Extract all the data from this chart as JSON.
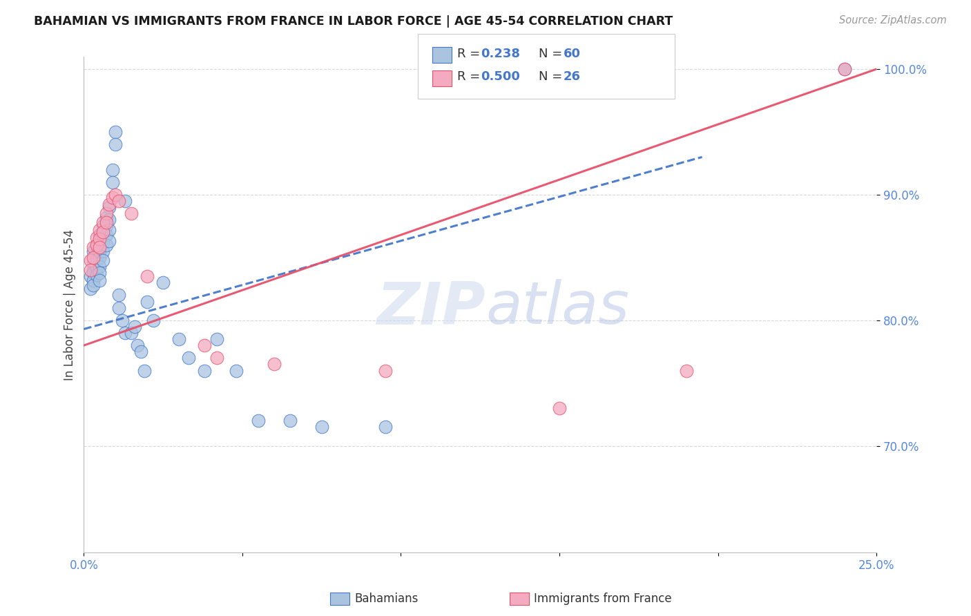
{
  "title": "BAHAMIAN VS IMMIGRANTS FROM FRANCE IN LABOR FORCE | AGE 45-54 CORRELATION CHART",
  "source": "Source: ZipAtlas.com",
  "ylabel": "In Labor Force | Age 45-54",
  "xlim": [
    0.0,
    0.25
  ],
  "ylim": [
    0.615,
    1.01
  ],
  "yticks": [
    0.7,
    0.8,
    0.9,
    1.0
  ],
  "yticklabels": [
    "70.0%",
    "80.0%",
    "90.0%",
    "100.0%"
  ],
  "bahamian_color": "#aac4e0",
  "france_color": "#f4aac0",
  "line1_color": "#4477cc",
  "line2_color": "#e8506a",
  "background_color": "#ffffff",
  "grid_color": "#d8d8d8",
  "bah_x": [
    0.002,
    0.002,
    0.003,
    0.003,
    0.003,
    0.003,
    0.003,
    0.003,
    0.004,
    0.004,
    0.004,
    0.004,
    0.004,
    0.005,
    0.005,
    0.005,
    0.005,
    0.005,
    0.005,
    0.005,
    0.006,
    0.006,
    0.006,
    0.006,
    0.006,
    0.007,
    0.007,
    0.007,
    0.007,
    0.008,
    0.008,
    0.008,
    0.008,
    0.009,
    0.009,
    0.01,
    0.01,
    0.011,
    0.011,
    0.012,
    0.013,
    0.013,
    0.015,
    0.016,
    0.017,
    0.018,
    0.019,
    0.02,
    0.022,
    0.025,
    0.03,
    0.033,
    0.038,
    0.042,
    0.048,
    0.055,
    0.065,
    0.075,
    0.095,
    0.24
  ],
  "bah_y": [
    0.835,
    0.825,
    0.855,
    0.845,
    0.84,
    0.838,
    0.832,
    0.828,
    0.86,
    0.853,
    0.848,
    0.842,
    0.836,
    0.868,
    0.862,
    0.855,
    0.85,
    0.843,
    0.838,
    0.832,
    0.875,
    0.87,
    0.862,
    0.855,
    0.848,
    0.882,
    0.875,
    0.868,
    0.86,
    0.89,
    0.88,
    0.872,
    0.863,
    0.92,
    0.91,
    0.95,
    0.94,
    0.82,
    0.81,
    0.8,
    0.79,
    0.895,
    0.79,
    0.795,
    0.78,
    0.775,
    0.76,
    0.815,
    0.8,
    0.83,
    0.785,
    0.77,
    0.76,
    0.785,
    0.76,
    0.72,
    0.72,
    0.715,
    0.715,
    1.0
  ],
  "fra_x": [
    0.002,
    0.002,
    0.003,
    0.003,
    0.004,
    0.004,
    0.005,
    0.005,
    0.005,
    0.006,
    0.006,
    0.007,
    0.007,
    0.008,
    0.009,
    0.01,
    0.011,
    0.015,
    0.02,
    0.038,
    0.042,
    0.06,
    0.095,
    0.15,
    0.19,
    0.24
  ],
  "fra_y": [
    0.848,
    0.84,
    0.858,
    0.85,
    0.866,
    0.86,
    0.872,
    0.865,
    0.858,
    0.878,
    0.87,
    0.885,
    0.878,
    0.892,
    0.898,
    0.9,
    0.895,
    0.885,
    0.835,
    0.78,
    0.77,
    0.765,
    0.76,
    0.73,
    0.76,
    1.0
  ],
  "bah_line_x0": 0.0,
  "bah_line_x1": 0.195,
  "bah_line_y0": 0.793,
  "bah_line_y1": 0.93,
  "fra_line_x0": 0.0,
  "fra_line_x1": 0.25,
  "fra_line_y0": 0.78,
  "fra_line_y1": 1.0
}
